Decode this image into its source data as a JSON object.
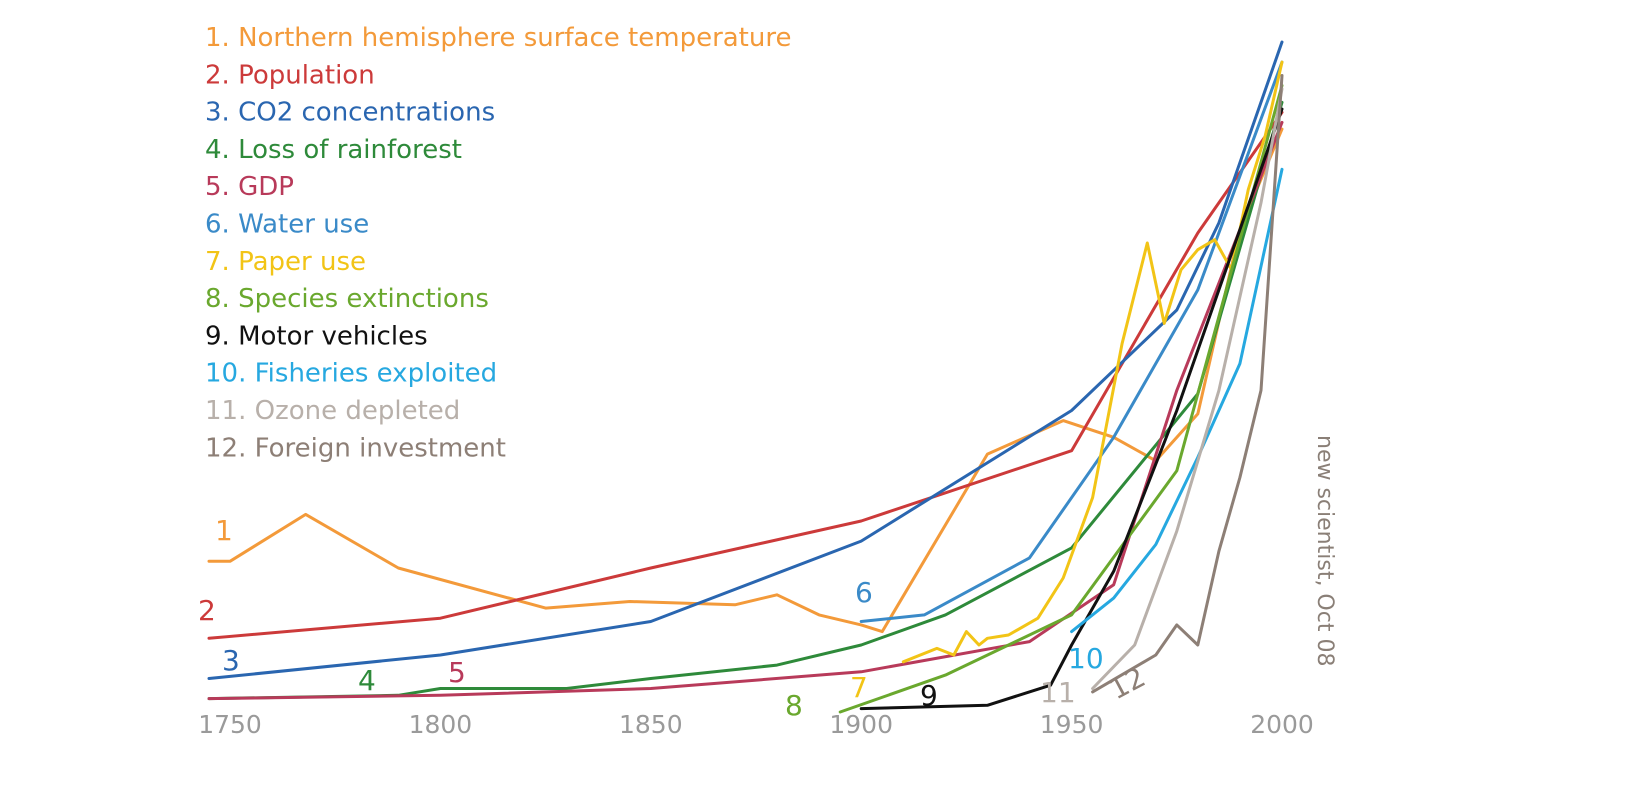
{
  "chart_data": {
    "type": "line",
    "title": "",
    "xlabel": "",
    "ylabel": "",
    "xlim": [
      1745,
      2005
    ],
    "ylim": [
      0,
      100
    ],
    "x_ticks": [
      "1750",
      "1800",
      "1850",
      "1900",
      "1950",
      "2000"
    ],
    "grid": false,
    "legend_position": "top-left",
    "credit": "new scientist, Oct 08",
    "series": [
      {
        "name": "1. Northern hemisphere surface temperature",
        "number": "1",
        "color": "#f39a3a",
        "x": [
          1745,
          1750,
          1768,
          1790,
          1825,
          1845,
          1870,
          1880,
          1890,
          1900,
          1905,
          1930,
          1948,
          1960,
          1970,
          1980,
          1990,
          2000
        ],
        "y": [
          22.5,
          22.5,
          29.5,
          21.5,
          15.5,
          16.5,
          16,
          17.5,
          14.5,
          13,
          12,
          38.5,
          43.5,
          41,
          37.5,
          44.5,
          72,
          87
        ]
      },
      {
        "name": "2. Population",
        "number": "2",
        "color": "#cc3a3a",
        "x": [
          1745,
          1800,
          1850,
          1900,
          1950,
          1980,
          2000
        ],
        "y": [
          11,
          14,
          21.5,
          28.5,
          39,
          71.5,
          89.5
        ]
      },
      {
        "name": "3. CO2 concentrations",
        "number": "3",
        "color": "#2a66b0",
        "x": [
          1745,
          1800,
          1850,
          1900,
          1950,
          1975,
          1985,
          2000
        ],
        "y": [
          5,
          8.5,
          13.5,
          25.5,
          45,
          60,
          73,
          100
        ]
      },
      {
        "name": "4. Loss of rainforest",
        "number": "4",
        "color": "#2e8a3a",
        "x": [
          1745,
          1790,
          1800,
          1830,
          1850,
          1880,
          1900,
          1920,
          1950,
          1980,
          2000
        ],
        "y": [
          2,
          2.5,
          3.5,
          3.5,
          5,
          7,
          10,
          14.5,
          24.5,
          47.5,
          91
        ]
      },
      {
        "name": "5. GDP",
        "number": "5",
        "color": "#b83a5a",
        "x": [
          1745,
          1800,
          1850,
          1900,
          1940,
          1960,
          1975,
          2000
        ],
        "y": [
          2,
          2.5,
          3.5,
          6,
          10.5,
          19,
          48,
          88
        ]
      },
      {
        "name": "6. Water use",
        "number": "6",
        "color": "#3a8ac8",
        "x": [
          1900,
          1915,
          1940,
          1960,
          1980,
          2000
        ],
        "y": [
          13.5,
          14.5,
          23,
          41,
          63,
          97
        ]
      },
      {
        "name": "7. Paper use",
        "number": "7",
        "color": "#f2c416",
        "x": [
          1910,
          1918,
          1922,
          1925,
          1928,
          1930,
          1935,
          1942,
          1948,
          1955,
          1962,
          1968,
          1972,
          1976,
          1980,
          1984,
          1988,
          1992,
          1996,
          2000
        ],
        "y": [
          7.5,
          9.5,
          8.5,
          12,
          10,
          11,
          11.5,
          14,
          20,
          32,
          55,
          70,
          58,
          66,
          69,
          70.5,
          66,
          78,
          86,
          97
        ]
      },
      {
        "name": "8. Species extinctions",
        "number": "8",
        "color": "#6aa82e",
        "x": [
          1895,
          1920,
          1950,
          1975,
          2000
        ],
        "y": [
          0,
          5.5,
          14.5,
          36,
          93.5
        ]
      },
      {
        "name": "9. Motor vehicles",
        "number": "9",
        "color": "#111111",
        "x": [
          1900,
          1930,
          1945,
          1950,
          1960,
          1975,
          2000
        ],
        "y": [
          0.5,
          1,
          4,
          10,
          21,
          45,
          90
        ]
      },
      {
        "name": "10. Fisheries exploited",
        "number": "10",
        "color": "#26a8e0",
        "x": [
          1950,
          1960,
          1970,
          1980,
          1990,
          2000
        ],
        "y": [
          12,
          17,
          25,
          38,
          52,
          81
        ]
      },
      {
        "name": "11. Ozone depleted",
        "number": "11",
        "color": "#b8b0aa",
        "x": [
          1955,
          1965,
          1975,
          1985,
          1995,
          2000
        ],
        "y": [
          3.5,
          10,
          27,
          48,
          76,
          93
        ]
      },
      {
        "name": "12. Foreign investment",
        "number": "12",
        "color": "#8d7f76",
        "x": [
          1955,
          1970,
          1975,
          1980,
          1985,
          1990,
          1995,
          2000
        ],
        "y": [
          3,
          8.5,
          13,
          10,
          24,
          35,
          48,
          95
        ]
      }
    ]
  }
}
